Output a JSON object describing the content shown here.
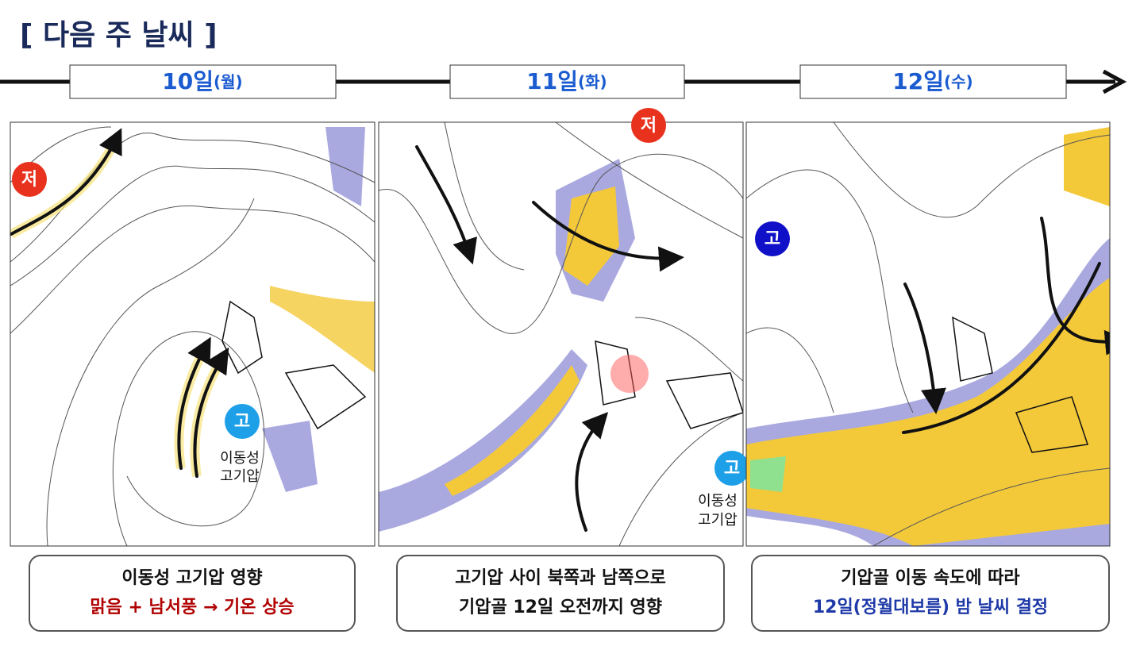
{
  "header": {
    "title": "[ 다음 주 날씨 ]"
  },
  "timeline": [
    {
      "day": "10일",
      "weekday": "(월)"
    },
    {
      "day": "11일",
      "weekday": "(화)"
    },
    {
      "day": "12일",
      "weekday": "(수)"
    }
  ],
  "panels": [
    {
      "labels": [
        "저",
        "고",
        "이동성",
        "고기압"
      ],
      "caption": [
        "이동성 고기압 영향",
        "맑음 + 남서풍 → 기온 상승"
      ]
    },
    {
      "labels": [
        "저",
        "고",
        "이동성",
        "고기압"
      ],
      "caption": [
        "고기압 사이 북쪽과 남쪽으로",
        "기압골 12일 오전까지 영향"
      ]
    },
    {
      "labels": [
        "고"
      ],
      "caption": [
        "기압골 이동 속도에 따라",
        "12일(정월대보름) 밤 날씨 결정"
      ]
    }
  ]
}
